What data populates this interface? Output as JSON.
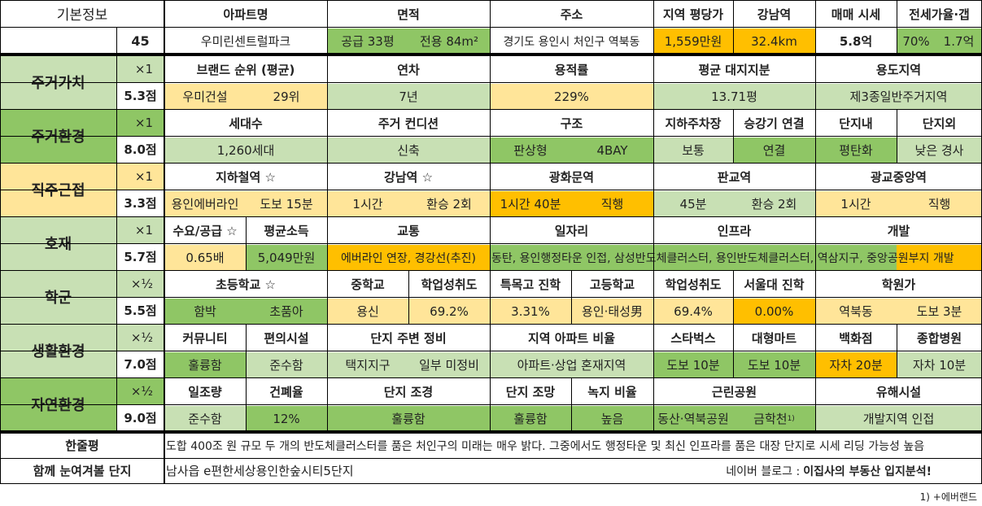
{
  "colors": {
    "yellow": "#ffe599",
    "green": "#8fc665",
    "lightgreen": "#c8e0b4",
    "orange": "#ffbf00",
    "dark_green": "#6cb33f"
  },
  "basic": {
    "label": "기본정보",
    "number": "45",
    "headers": {
      "apt": "아파트명",
      "area": "면적",
      "addr": "주소",
      "pyeong": "지역 평당가",
      "gangnam": "강남역",
      "sale": "매매 시세",
      "jeonse": "전세가율·갭"
    },
    "apt": "우미린센트럴파크",
    "area_supply": "공급 33평",
    "area_net": "전용 84m²",
    "addr": "경기도 용인시 처인구 역북동",
    "pyeong": "1,559만원",
    "gangnam": "32.4km",
    "sale": "5.8억",
    "jeonse_rate": "70%",
    "jeonse_gap": "1.7억"
  },
  "sections": [
    {
      "name": "주거가치",
      "mult": "×1",
      "score": "5.3점"
    },
    {
      "name": "주거환경",
      "mult": "×1",
      "score": "8.0점"
    },
    {
      "name": "직주근접",
      "mult": "×1",
      "score": "3.3점"
    },
    {
      "name": "호재",
      "mult": "×1",
      "score": "5.7점"
    },
    {
      "name": "학군",
      "mult": "×½",
      "score": "5.5점"
    },
    {
      "name": "생활환경",
      "mult": "×½",
      "score": "7.0점"
    },
    {
      "name": "자연환경",
      "mult": "×½",
      "score": "9.0점"
    }
  ],
  "value": {
    "h": [
      "브랜드 순위 (평균)",
      "연차",
      "용적률",
      "평균 대지지분",
      "용도지역"
    ],
    "brand": "우미건설",
    "rank": "29위",
    "age": "7년",
    "far": "229%",
    "land": "13.71평",
    "zone": "제3종일반주거지역"
  },
  "env": {
    "h": [
      "세대수",
      "주거 컨디션",
      "구조",
      "지하주차장",
      "승강기 연결",
      "단지내",
      "단지외"
    ],
    "households": "1,260세대",
    "condition": "신축",
    "type": "판상형",
    "bay": "4BAY",
    "parking": "보통",
    "elevator": "연결",
    "inside": "평탄화",
    "outside": "낮은 경사"
  },
  "commute": {
    "h": [
      "지하철역 ☆",
      "강남역 ☆",
      "광화문역",
      "판교역",
      "광교중앙역"
    ],
    "station": "용인에버라인",
    "walk": "도보 15분",
    "g_time": "1시간",
    "g_tr": "환승 2회",
    "gw_time": "1시간 40분",
    "gw_tr": "직행",
    "p_time": "45분",
    "p_tr": "환승 2회",
    "k_time": "1시간",
    "k_tr": "직행"
  },
  "dev": {
    "h": [
      "수요/공급 ☆",
      "평균소득",
      "교통",
      "일자리",
      "인프라",
      "개발"
    ],
    "ratio": "0.65배",
    "income": "5,049만원",
    "traffic": "에버라인 연장, 경강선(추진)",
    "jobs": "동탄, 용인행정타운 인접, 삼성반도체클러스터, 용인반도체클러스터, 역삼지구, 중앙공원부지 개발"
  },
  "school": {
    "h": [
      "초등학교 ☆",
      "중학교",
      "학업성취도",
      "특목고 진학",
      "고등학교",
      "학업성취도",
      "서울대 진학",
      "학원가"
    ],
    "elem": "함박",
    "elem2": "초품아",
    "middle": "용신",
    "m_score": "69.2%",
    "special": "3.31%",
    "high": "용인·태성男",
    "h_score": "69.4%",
    "snu": "0.00%",
    "academy": "역북동",
    "academy_walk": "도보 3분"
  },
  "life": {
    "h": [
      "커뮤니티",
      "편의시설",
      "단지 주변 정비",
      "지역 아파트 비율",
      "스타벅스",
      "대형마트",
      "백화점",
      "종합병원"
    ],
    "community": "훌륭함",
    "convenience": "준수함",
    "around1": "택지지구",
    "around2": "일부 미정비",
    "ratio": "아파트·상업 혼재지역",
    "starbucks": "도보 10분",
    "mart": "도보 10분",
    "dept": "자차 20분",
    "hospital": "자차 10분"
  },
  "nature": {
    "h": [
      "일조량",
      "건폐율",
      "단지 조경",
      "단지 조망",
      "녹지 비율",
      "근린공원",
      "유해시설"
    ],
    "sun": "준수함",
    "bcr": "12%",
    "landscape": "훌륭함",
    "view": "훌륭함",
    "green": "높음",
    "park1": "동산·역북공원",
    "park2": "금학천",
    "park_sup": "1)",
    "harm": "개발지역 인접"
  },
  "footer": {
    "summary_label": "한줄평",
    "summary": "도합 400조 원 규모 두 개의 반도체클러스터를 품은 처인구의 미래는 매우 밝다. 그중에서도 행정타운 및 최신 인프라를 품은 대장 단지로 시세 리딩 가능성 높음",
    "similar_label": "함께 눈여겨볼 단지",
    "similar": "남사읍 e편한세상용인한숲시티5단지",
    "blog_prefix": "네이버 블로그 :",
    "blog": "이집사의 부동산 입지분석!",
    "footnote": "1) +에버랜드"
  }
}
